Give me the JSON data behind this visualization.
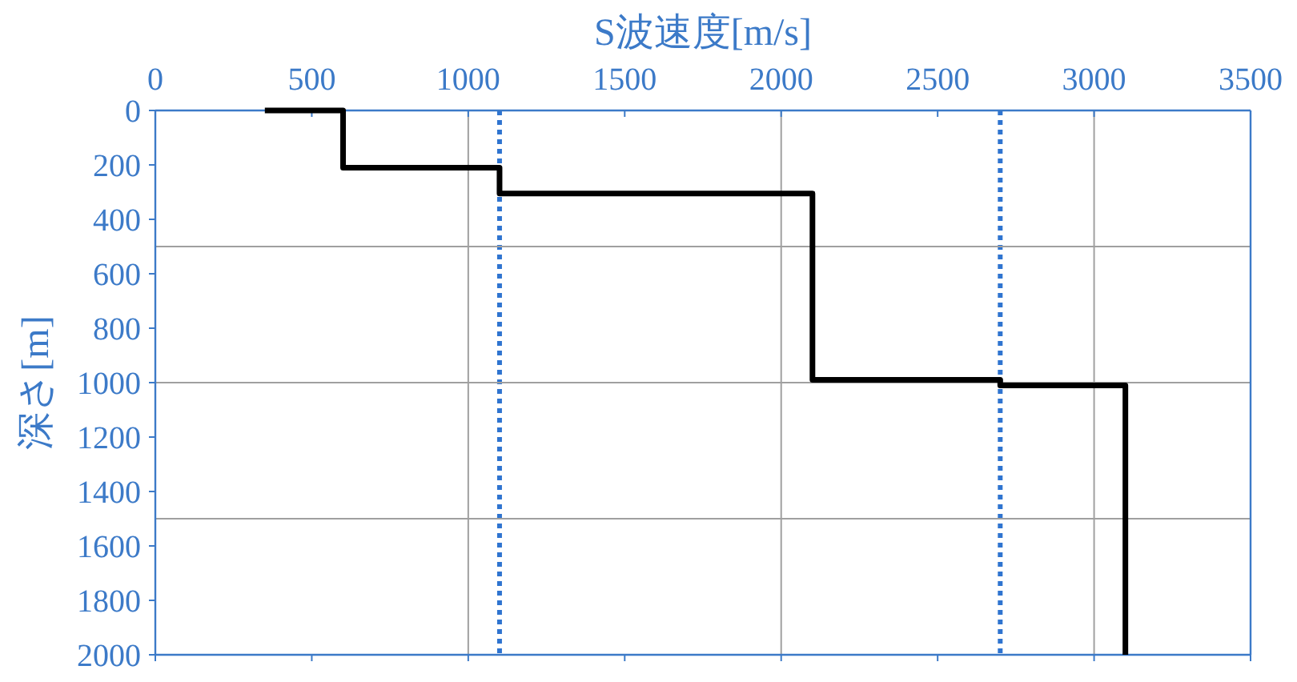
{
  "chart_data": {
    "type": "line",
    "xlabel": "S波速度[m/s]",
    "ylabel": "深さ[m]",
    "xlim": [
      0,
      3500
    ],
    "xticks": [
      0,
      500,
      1000,
      1500,
      2000,
      2500,
      3000,
      3500
    ],
    "ylim": [
      2000,
      0
    ],
    "yticks": [
      0,
      200,
      400,
      600,
      800,
      1000,
      1200,
      1400,
      1600,
      1800,
      2000
    ],
    "series": [
      {
        "color": "#000000",
        "x": [
          350,
          600,
          600,
          1100,
          1100,
          2100,
          2100,
          2700,
          2700,
          3100,
          3100
        ],
        "values": [
          0,
          0,
          210,
          210,
          305,
          305,
          990,
          990,
          1010,
          1010,
          2000
        ]
      }
    ],
    "ref_lines": [
      {
        "axis": "x",
        "value": 1100,
        "color": "#2f74d0",
        "line_style": "dotted"
      },
      {
        "axis": "x",
        "value": 2700,
        "color": "#2f74d0",
        "line_style": "dotted"
      },
      {
        "axis": "x",
        "value": 1000,
        "color": "#a0a0a0",
        "line_style": "solid"
      },
      {
        "axis": "x",
        "value": 2000,
        "color": "#a0a0a0",
        "line_style": "solid"
      },
      {
        "axis": "x",
        "value": 3000,
        "color": "#a0a0a0",
        "line_style": "solid"
      },
      {
        "axis": "y",
        "value": 500,
        "color": "#a0a0a0",
        "line_style": "solid"
      },
      {
        "axis": "y",
        "value": 1000,
        "color": "#a0a0a0",
        "line_style": "solid"
      },
      {
        "axis": "y",
        "value": 1500,
        "color": "#a0a0a0",
        "line_style": "solid"
      }
    ],
    "grid": false
  }
}
